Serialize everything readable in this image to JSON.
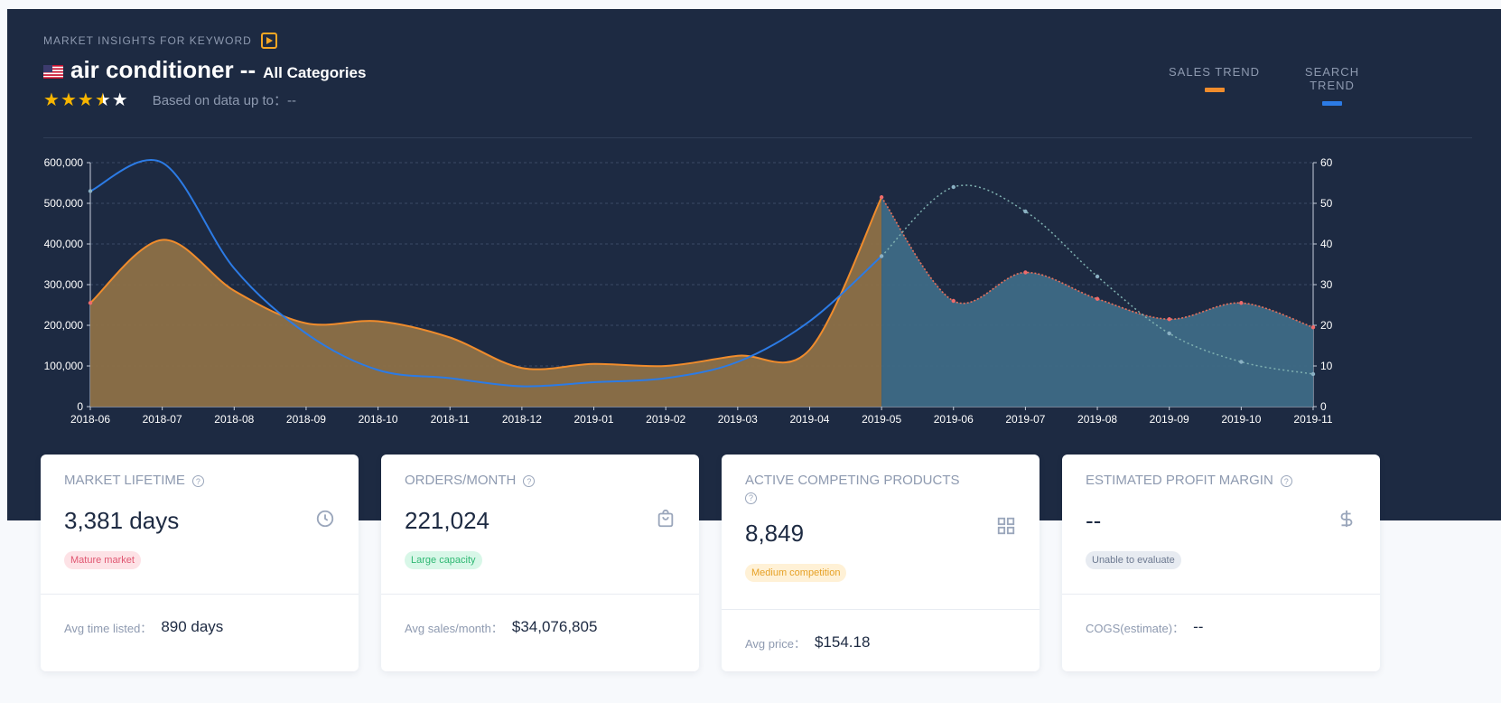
{
  "header": {
    "eyebrow": "MARKET INSIGHTS FOR KEYWORD",
    "keyword": "air conditioner --",
    "category": "All Categories",
    "rating": 3.5,
    "based_on": "Based on data up to：--",
    "legend_sales": "SALES TREND",
    "legend_search": "SEARCH TREND",
    "colors": {
      "sales": "#f08c2c",
      "search": "#2c7be5",
      "forecast": "#3e6a86"
    },
    "icons": [
      "video-icon",
      "us-flag-icon",
      "star-icon"
    ]
  },
  "chart_data": {
    "type": "area",
    "categories": [
      "2018-06",
      "2018-07",
      "2018-08",
      "2018-09",
      "2018-10",
      "2018-11",
      "2018-12",
      "2019-01",
      "2019-02",
      "2019-03",
      "2019-04",
      "2019-05",
      "2019-06",
      "2019-07",
      "2019-08",
      "2019-09",
      "2019-10",
      "2019-11"
    ],
    "y_left_ticks": [
      "0",
      "100,000",
      "200,000",
      "300,000",
      "400,000",
      "500,000",
      "600,000"
    ],
    "y_right_ticks": [
      "0",
      "10",
      "20",
      "30",
      "40",
      "50",
      "60"
    ],
    "ylim_left": [
      0,
      600000
    ],
    "ylim_right": [
      0,
      60
    ],
    "forecast_start": "2019-05",
    "grid": true,
    "series": [
      {
        "axis": "left",
        "values": [
          255000,
          410000,
          285000,
          205000,
          210000,
          170000,
          95000,
          105000,
          100000,
          125000,
          140000,
          515000,
          260000,
          330000,
          265000,
          215000,
          255000,
          195000
        ]
      },
      {
        "axis": "right",
        "values": [
          53,
          60,
          34,
          18,
          9,
          7,
          5,
          6,
          7,
          11,
          21,
          37,
          54,
          48,
          32,
          18,
          11,
          8
        ]
      }
    ]
  },
  "cards": [
    {
      "title": "MARKET LIFETIME",
      "value": "3,381 days",
      "badge": "Mature market",
      "badge_color": "red",
      "icon": "clock-icon",
      "footer_label": "Avg time listed：",
      "footer_value": "890 days"
    },
    {
      "title": "ORDERS/MONTH",
      "value": "221,024",
      "badge": "Large capacity",
      "badge_color": "green",
      "icon": "shopping-bag-icon",
      "footer_label": "Avg sales/month：",
      "footer_value": "$34,076,805"
    },
    {
      "title": "ACTIVE COMPETING PRODUCTS",
      "value": "8,849",
      "badge": "Medium competition",
      "badge_color": "yellow",
      "icon": "grid-icon",
      "footer_label": "Avg price：",
      "footer_value": "$154.18"
    },
    {
      "title": "ESTIMATED PROFIT MARGIN",
      "value": "--",
      "badge": "Unable to evaluate",
      "badge_color": "gray",
      "icon": "dollar-icon",
      "footer_label": "COGS(estimate)：",
      "footer_value": "--"
    }
  ]
}
